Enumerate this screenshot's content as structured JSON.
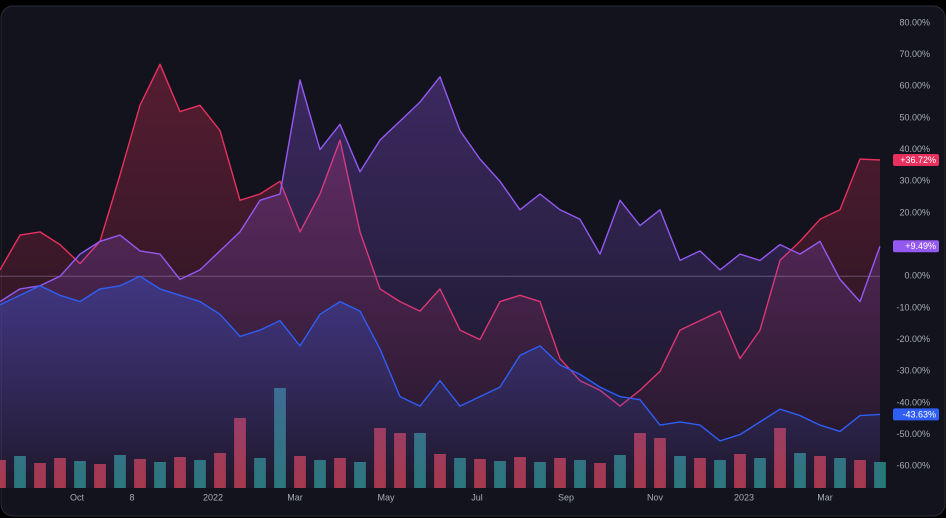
{
  "chart_data": {
    "type": "line",
    "x": [
      0,
      1,
      2,
      3,
      4,
      5,
      6,
      7,
      8,
      9,
      10,
      11,
      12,
      13,
      14,
      15,
      16,
      17,
      18,
      19,
      20,
      21,
      22,
      23,
      24,
      25,
      26,
      27,
      28,
      29,
      30,
      31,
      32,
      33,
      34,
      35,
      36,
      37,
      38,
      39,
      40,
      41,
      42,
      43,
      44
    ],
    "xlim": [
      0,
      44
    ],
    "xticks": [
      {
        "value": 3.85,
        "label": "Oct"
      },
      {
        "value": 6.6,
        "label": "8"
      },
      {
        "value": 10.65,
        "label": "2022"
      },
      {
        "value": 14.75,
        "label": "Mar"
      },
      {
        "value": 19.3,
        "label": "May"
      },
      {
        "value": 23.85,
        "label": "Jul"
      },
      {
        "value": 28.3,
        "label": "Sep"
      },
      {
        "value": 32.75,
        "label": "Nov"
      },
      {
        "value": 37.2,
        "label": "2023"
      },
      {
        "value": 41.25,
        "label": "Mar"
      }
    ],
    "ylim": [
      -67,
      81
    ],
    "yticks": [
      {
        "value": 80,
        "label": "80.00%"
      },
      {
        "value": 70,
        "label": "70.00%"
      },
      {
        "value": 60,
        "label": "60.00%"
      },
      {
        "value": 50,
        "label": "50.00%"
      },
      {
        "value": 40,
        "label": "40.00%"
      },
      {
        "value": 30,
        "label": "30.00%"
      },
      {
        "value": 20,
        "label": "20.00%"
      },
      {
        "value": 10,
        "label": "10.00%"
      },
      {
        "value": 0,
        "label": "0.00%"
      },
      {
        "value": -10,
        "label": "-10.00%"
      },
      {
        "value": -20,
        "label": "-20.00%"
      },
      {
        "value": -30,
        "label": "-30.00%"
      },
      {
        "value": -40,
        "label": "-40.00%"
      },
      {
        "value": -50,
        "label": "-50.00%"
      },
      {
        "value": -60,
        "label": "-60.00%"
      }
    ],
    "series": [
      {
        "color": "#e8305f",
        "last_label": "+36.72%",
        "values": [
          2,
          13,
          14,
          10,
          4,
          11,
          32,
          54,
          67,
          52,
          54,
          46,
          24,
          26,
          30,
          14,
          26,
          43,
          14,
          -4,
          -8,
          -11,
          -4,
          -17,
          -20,
          -8,
          -6,
          -8,
          -26,
          -33,
          -36,
          -41,
          -36,
          -30,
          -17,
          -14,
          -11,
          -26,
          -17,
          5,
          11,
          18,
          21,
          37,
          36.72
        ]
      },
      {
        "color": "#9459f2",
        "last_label": "+9.49%",
        "values": [
          -8,
          -4,
          -3,
          0,
          7,
          11,
          13,
          8,
          7,
          -1,
          2,
          8,
          14,
          24,
          26,
          62,
          40,
          48,
          33,
          43,
          49,
          55,
          63,
          46,
          37,
          30,
          21,
          26,
          21,
          18,
          7,
          24,
          16,
          21,
          5,
          8,
          2,
          7,
          5,
          10,
          7,
          11,
          -1,
          -8,
          9.49
        ]
      },
      {
        "color": "#2f5ef5",
        "last_label": "-43.63%",
        "values": [
          -9,
          -6,
          -3,
          -6,
          -8,
          -4,
          -3,
          0,
          -4,
          -6,
          -8,
          -12,
          -19,
          -17,
          -14,
          -22,
          -12,
          -8,
          -11,
          -23,
          -38,
          -41,
          -33,
          -41,
          -38,
          -35,
          -25,
          -22,
          -28,
          -31,
          -35,
          -38,
          -39,
          -47,
          -46,
          -47,
          -52,
          -50,
          -46,
          -42,
          -44,
          -47,
          -49,
          -44,
          -43.63
        ]
      }
    ],
    "volume": {
      "lim": [
        0,
        130
      ],
      "values": [
        28,
        32,
        25,
        30,
        27,
        24,
        33,
        29,
        26,
        31,
        28,
        35,
        70,
        30,
        100,
        32,
        28,
        30,
        26,
        60,
        55,
        55,
        34,
        30,
        29,
        27,
        31,
        26,
        30,
        28,
        25,
        33,
        55,
        50,
        32,
        30,
        28,
        34,
        30,
        60,
        35,
        32,
        30,
        28,
        26
      ],
      "colors": [
        "#d94450",
        "#2a9d94",
        "#d94450",
        "#d94450",
        "#2a9d94",
        "#d94450",
        "#2a9d94",
        "#d94450",
        "#2a9d94",
        "#d94450",
        "#2a9d94",
        "#d94450",
        "#d94450",
        "#2a9d94",
        "#2a9d94",
        "#d94450",
        "#2a9d94",
        "#d94450",
        "#2a9d94",
        "#d94450",
        "#d94450",
        "#2a9d94",
        "#d94450",
        "#2a9d94",
        "#d94450",
        "#2a9d94",
        "#d94450",
        "#2a9d94",
        "#d94450",
        "#2a9d94",
        "#d94450",
        "#2a9d94",
        "#d94450",
        "#d94450",
        "#2a9d94",
        "#d94450",
        "#2a9d94",
        "#d94450",
        "#2a9d94",
        "#d94450",
        "#2a9d94",
        "#d94450",
        "#2a9d94",
        "#d94450",
        "#2a9d94"
      ]
    },
    "zero_line": 0
  }
}
